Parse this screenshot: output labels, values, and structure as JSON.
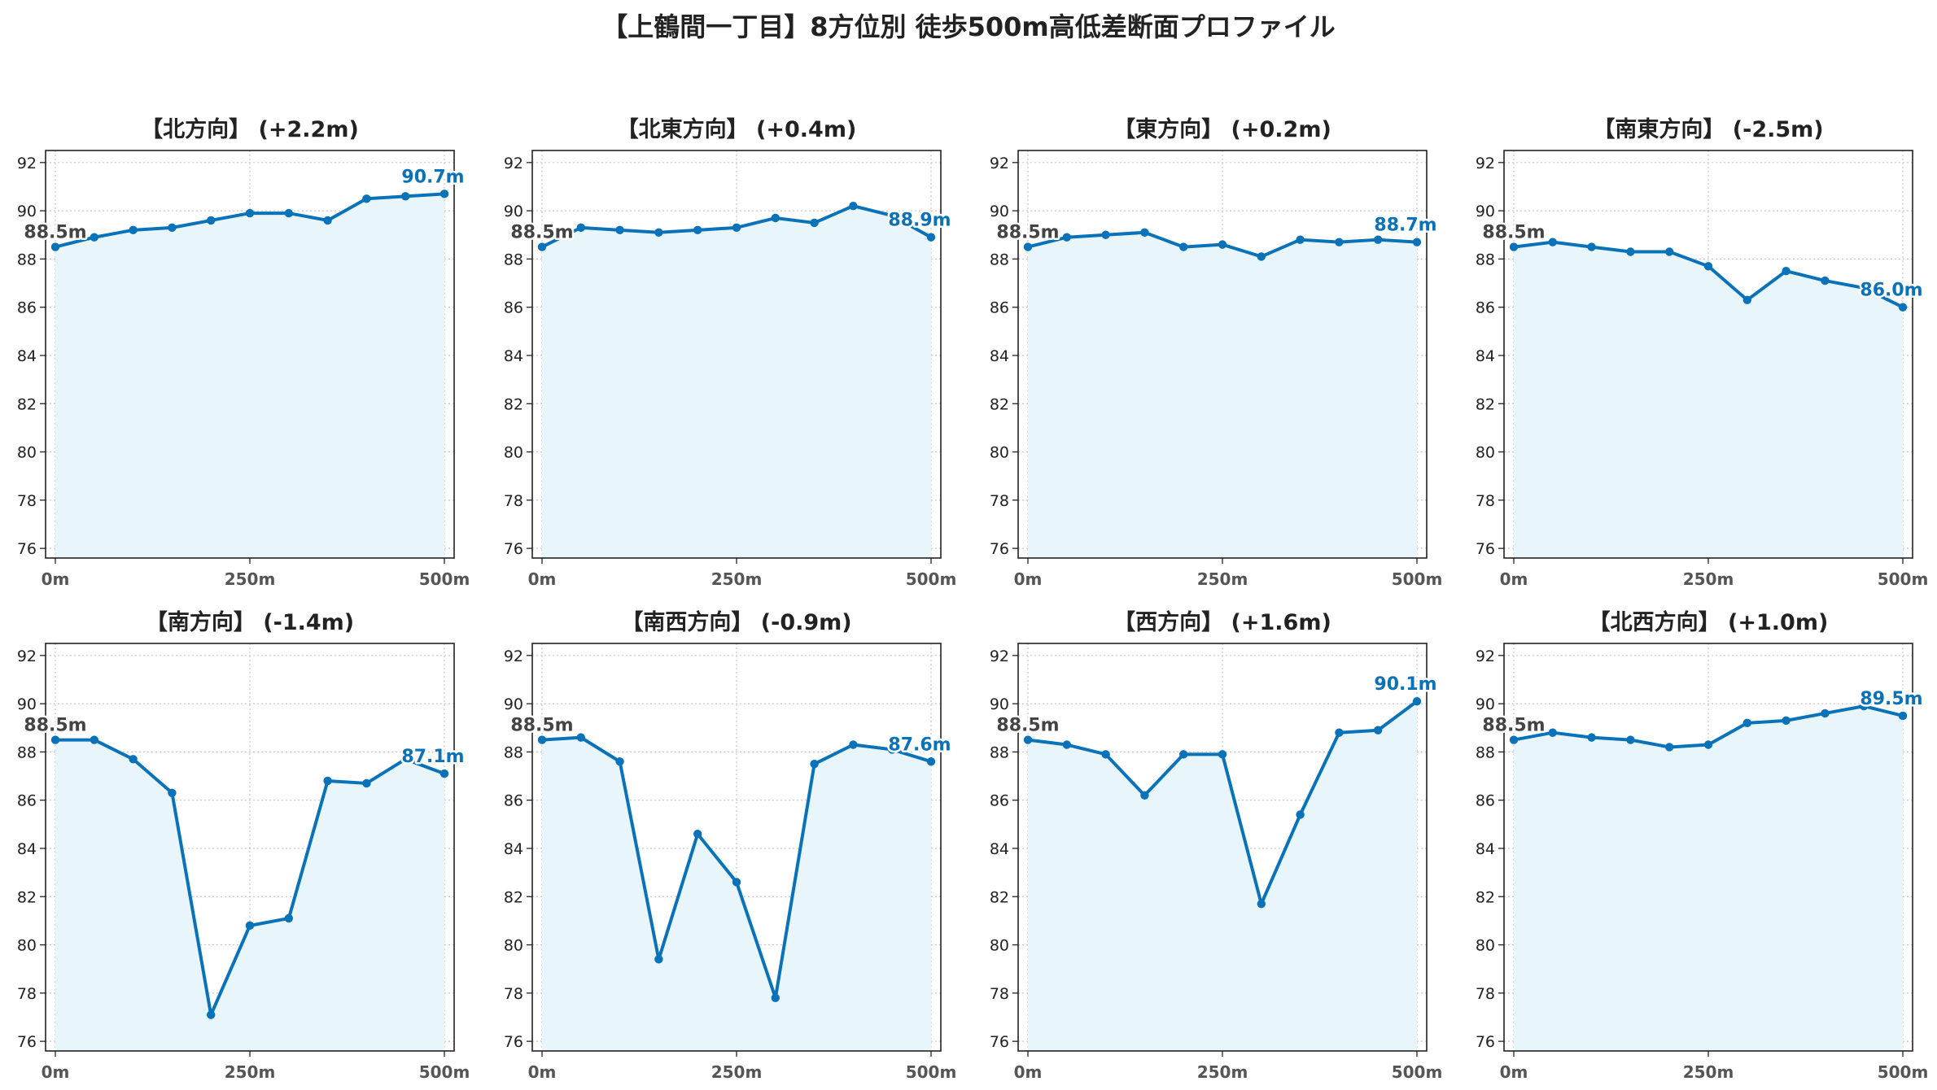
{
  "title": "【上鶴間一丁目】8方位別 徒歩500m高低差断面プロファイル",
  "colors": {
    "line": "#0a72b8",
    "fill": "#e8f5fb",
    "grid": "#c8c8c8",
    "start_label": "#444444",
    "end_label": "#0a72b8"
  },
  "chart_data": [
    {
      "type": "area",
      "title": "【北方向】 (+2.2m)",
      "x": [
        0,
        50,
        100,
        150,
        200,
        250,
        300,
        350,
        400,
        450,
        500
      ],
      "series": [
        {
          "values": [
            88.5,
            88.9,
            89.2,
            89.3,
            89.6,
            89.9,
            89.9,
            89.6,
            90.5,
            90.6,
            90.7
          ]
        }
      ],
      "xticks": [
        "0m",
        "250m",
        "500m"
      ],
      "yticks": [
        "92",
        "90",
        "88",
        "86",
        "84",
        "82",
        "80",
        "78",
        "76"
      ],
      "ylim": [
        75.6,
        92.5
      ],
      "start_label": "88.5m",
      "end_label": "90.7m",
      "grid": true
    },
    {
      "type": "area",
      "title": "【北東方向】 (+0.4m)",
      "x": [
        0,
        50,
        100,
        150,
        200,
        250,
        300,
        350,
        400,
        450,
        500
      ],
      "series": [
        {
          "values": [
            88.5,
            89.3,
            89.2,
            89.1,
            89.2,
            89.3,
            89.7,
            89.5,
            90.2,
            89.8,
            88.9
          ]
        }
      ],
      "xticks": [
        "0m",
        "250m",
        "500m"
      ],
      "yticks": [
        "92",
        "90",
        "88",
        "86",
        "84",
        "82",
        "80",
        "78",
        "76"
      ],
      "ylim": [
        75.6,
        92.5
      ],
      "start_label": "88.5m",
      "end_label": "88.9m",
      "grid": true
    },
    {
      "type": "area",
      "title": "【東方向】 (+0.2m)",
      "x": [
        0,
        50,
        100,
        150,
        200,
        250,
        300,
        350,
        400,
        450,
        500
      ],
      "series": [
        {
          "values": [
            88.5,
            88.9,
            89.0,
            89.1,
            88.5,
            88.6,
            88.1,
            88.8,
            88.7,
            88.8,
            88.7
          ]
        }
      ],
      "xticks": [
        "0m",
        "250m",
        "500m"
      ],
      "yticks": [
        "92",
        "90",
        "88",
        "86",
        "84",
        "82",
        "80",
        "78",
        "76"
      ],
      "ylim": [
        75.6,
        92.5
      ],
      "start_label": "88.5m",
      "end_label": "88.7m",
      "grid": true
    },
    {
      "type": "area",
      "title": "【南東方向】 (-2.5m)",
      "x": [
        0,
        50,
        100,
        150,
        200,
        250,
        300,
        350,
        400,
        450,
        500
      ],
      "series": [
        {
          "values": [
            88.5,
            88.7,
            88.5,
            88.3,
            88.3,
            87.7,
            86.3,
            87.5,
            87.1,
            86.8,
            86.0
          ]
        }
      ],
      "xticks": [
        "0m",
        "250m",
        "500m"
      ],
      "yticks": [
        "92",
        "90",
        "88",
        "86",
        "84",
        "82",
        "80",
        "78",
        "76"
      ],
      "ylim": [
        75.6,
        92.5
      ],
      "start_label": "88.5m",
      "end_label": "86.0m",
      "grid": true
    },
    {
      "type": "area",
      "title": "【南方向】 (-1.4m)",
      "x": [
        0,
        50,
        100,
        150,
        200,
        250,
        300,
        350,
        400,
        450,
        500
      ],
      "series": [
        {
          "values": [
            88.5,
            88.5,
            87.7,
            86.3,
            77.1,
            80.8,
            81.1,
            86.8,
            86.7,
            87.7,
            87.1
          ]
        }
      ],
      "xticks": [
        "0m",
        "250m",
        "500m"
      ],
      "yticks": [
        "92",
        "90",
        "88",
        "86",
        "84",
        "82",
        "80",
        "78",
        "76"
      ],
      "ylim": [
        75.6,
        92.5
      ],
      "start_label": "88.5m",
      "end_label": "87.1m",
      "grid": true
    },
    {
      "type": "area",
      "title": "【南西方向】 (-0.9m)",
      "x": [
        0,
        50,
        100,
        150,
        200,
        250,
        300,
        350,
        400,
        450,
        500
      ],
      "series": [
        {
          "values": [
            88.5,
            88.6,
            87.6,
            79.4,
            84.6,
            82.6,
            77.8,
            87.5,
            88.3,
            88.1,
            87.6
          ]
        }
      ],
      "xticks": [
        "0m",
        "250m",
        "500m"
      ],
      "yticks": [
        "92",
        "90",
        "88",
        "86",
        "84",
        "82",
        "80",
        "78",
        "76"
      ],
      "ylim": [
        75.6,
        92.5
      ],
      "start_label": "88.5m",
      "end_label": "87.6m",
      "grid": true
    },
    {
      "type": "area",
      "title": "【西方向】 (+1.6m)",
      "x": [
        0,
        50,
        100,
        150,
        200,
        250,
        300,
        350,
        400,
        450,
        500
      ],
      "series": [
        {
          "values": [
            88.5,
            88.3,
            87.9,
            86.2,
            87.9,
            87.9,
            81.7,
            85.4,
            88.8,
            88.9,
            90.1
          ]
        }
      ],
      "xticks": [
        "0m",
        "250m",
        "500m"
      ],
      "yticks": [
        "92",
        "90",
        "88",
        "86",
        "84",
        "82",
        "80",
        "78",
        "76"
      ],
      "ylim": [
        75.6,
        92.5
      ],
      "start_label": "88.5m",
      "end_label": "90.1m",
      "grid": true
    },
    {
      "type": "area",
      "title": "【北西方向】 (+1.0m)",
      "x": [
        0,
        50,
        100,
        150,
        200,
        250,
        300,
        350,
        400,
        450,
        500
      ],
      "series": [
        {
          "values": [
            88.5,
            88.8,
            88.6,
            88.5,
            88.2,
            88.3,
            89.2,
            89.3,
            89.6,
            89.9,
            89.5
          ]
        }
      ],
      "xticks": [
        "0m",
        "250m",
        "500m"
      ],
      "yticks": [
        "92",
        "90",
        "88",
        "86",
        "84",
        "82",
        "80",
        "78",
        "76"
      ],
      "ylim": [
        75.6,
        92.5
      ],
      "start_label": "88.5m",
      "end_label": "89.5m",
      "grid": true
    }
  ]
}
